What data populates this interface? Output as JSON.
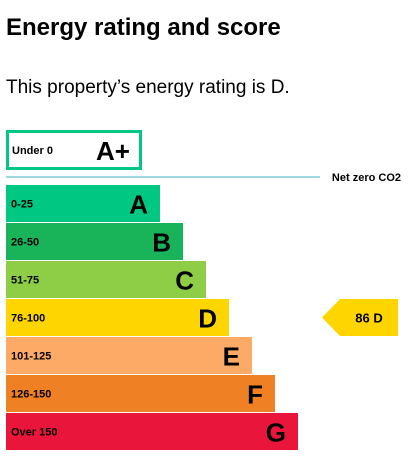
{
  "heading": "Energy rating and score",
  "intro": "This property’s energy rating is D.",
  "chart_data": {
    "type": "bar",
    "categories": [
      "A+",
      "A",
      "B",
      "C",
      "D",
      "E",
      "F",
      "G"
    ],
    "bands": [
      {
        "rating": "A+",
        "range": "Under 0",
        "color": "#ffffff",
        "border": "#00c781",
        "tier": 0
      },
      {
        "rating": "A",
        "range": "0-25",
        "color": "#00c781",
        "tier": 1
      },
      {
        "rating": "B",
        "range": "26-50",
        "color": "#19b459",
        "tier": 2
      },
      {
        "rating": "C",
        "range": "51-75",
        "color": "#8dce46",
        "tier": 3
      },
      {
        "rating": "D",
        "range": "76-100",
        "color": "#ffd500",
        "tier": 4
      },
      {
        "rating": "E",
        "range": "101-125",
        "color": "#fcaa65",
        "tier": 5
      },
      {
        "rating": "F",
        "range": "126-150",
        "color": "#ef8023",
        "tier": 6
      },
      {
        "rating": "G",
        "range": "Over 150",
        "color": "#e9153b",
        "tier": 7
      }
    ],
    "marker": {
      "label": "Net zero CO2",
      "color": "#9fd8e0"
    },
    "current": {
      "score": 86,
      "rating": "D",
      "label": "86  D",
      "color": "#ffd500"
    }
  }
}
